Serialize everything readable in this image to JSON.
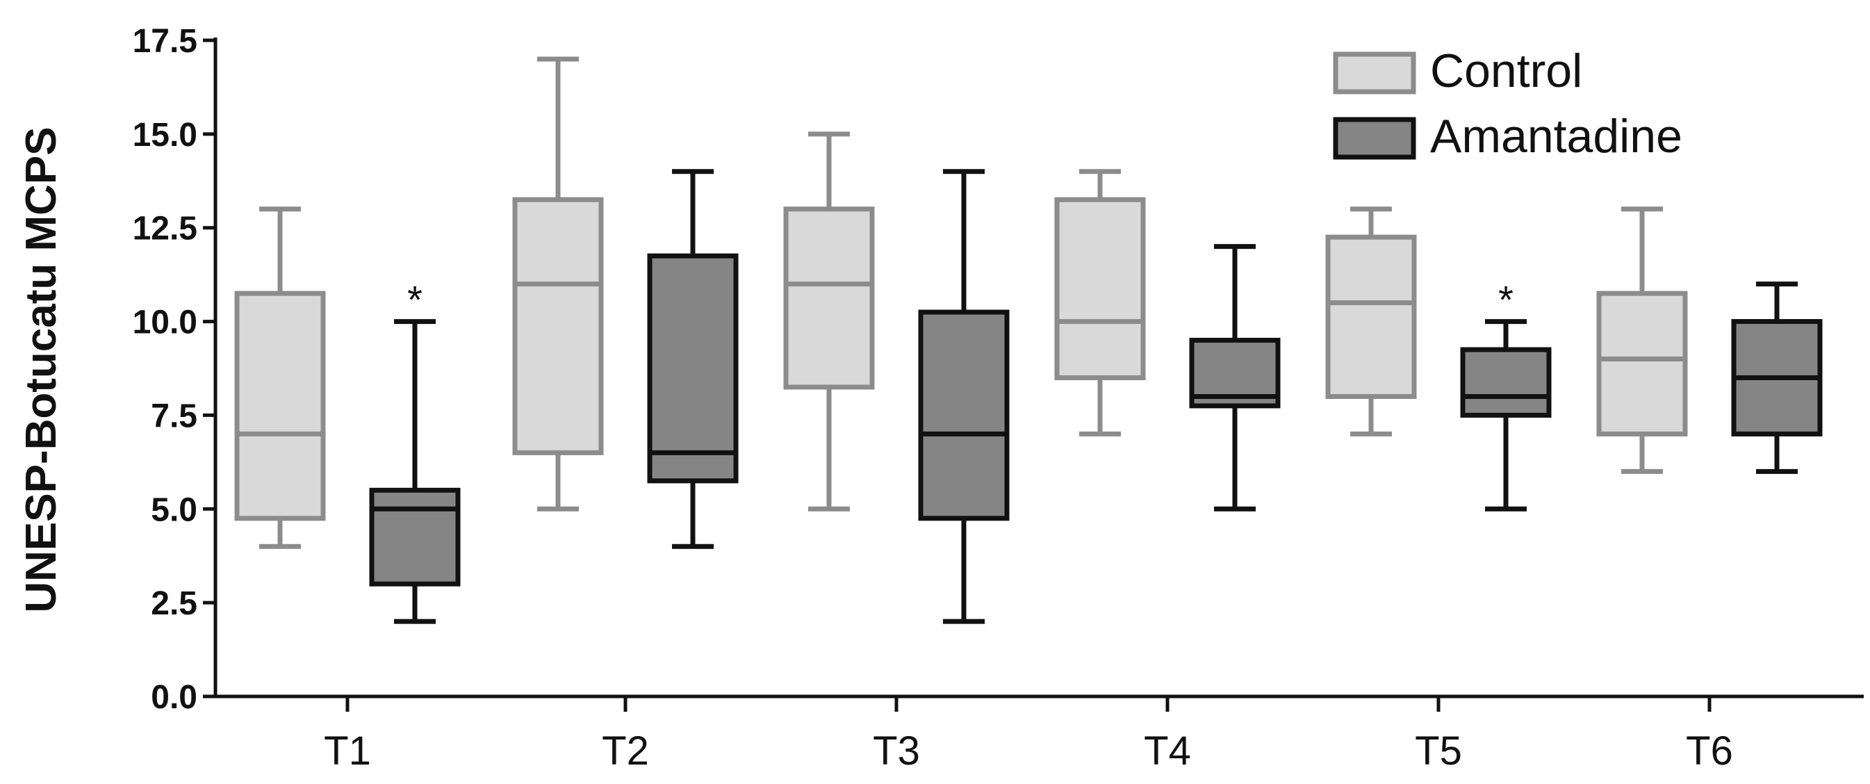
{
  "chart_data": {
    "type": "boxplot",
    "title": "",
    "xlabel": "",
    "ylabel": "UNESP-Botucatu MCPS",
    "ylim": [
      0,
      17.5
    ],
    "yticks": [
      "0.0",
      "2.5",
      "5.0",
      "7.5",
      "10.0",
      "12.5",
      "15.0",
      "17.5"
    ],
    "categories": [
      "T1",
      "T2",
      "T3",
      "T4",
      "T5",
      "T6"
    ],
    "legend_position": "top-right",
    "series": [
      {
        "name": "Control",
        "fill": "#d9d9d9",
        "stroke": "#8c8c8c",
        "boxes": [
          {
            "min": 4,
            "q1": 4.75,
            "median": 7,
            "q3": 10.75,
            "max": 13
          },
          {
            "min": 5,
            "q1": 6.5,
            "median": 11,
            "q3": 13.25,
            "max": 17
          },
          {
            "min": 5,
            "q1": 8.25,
            "median": 11,
            "q3": 13,
            "max": 15
          },
          {
            "min": 7,
            "q1": 8.5,
            "median": 10,
            "q3": 13.25,
            "max": 14
          },
          {
            "min": 7,
            "q1": 8,
            "median": 10.5,
            "q3": 12.25,
            "max": 13
          },
          {
            "min": 6,
            "q1": 7,
            "median": 9,
            "q3": 10.75,
            "max": 13
          }
        ]
      },
      {
        "name": "Amantadine",
        "fill": "#858585",
        "stroke": "#111111",
        "boxes": [
          {
            "min": 2,
            "q1": 3,
            "median": 5,
            "q3": 5.5,
            "max": 10
          },
          {
            "min": 4,
            "q1": 5.75,
            "median": 6.5,
            "q3": 11.75,
            "max": 14
          },
          {
            "min": 2,
            "q1": 4.75,
            "median": 7,
            "q3": 10.25,
            "max": 14
          },
          {
            "min": 5,
            "q1": 7.75,
            "median": 8,
            "q3": 9.5,
            "max": 12
          },
          {
            "min": 5,
            "q1": 7.5,
            "median": 8,
            "q3": 9.25,
            "max": 10
          },
          {
            "min": 6,
            "q1": 7,
            "median": 8.5,
            "q3": 10,
            "max": 11
          }
        ]
      }
    ],
    "annotations": [
      {
        "text": "*",
        "category": "T1",
        "series": "Amantadine"
      },
      {
        "text": "*",
        "category": "T5",
        "series": "Amantadine"
      }
    ]
  }
}
